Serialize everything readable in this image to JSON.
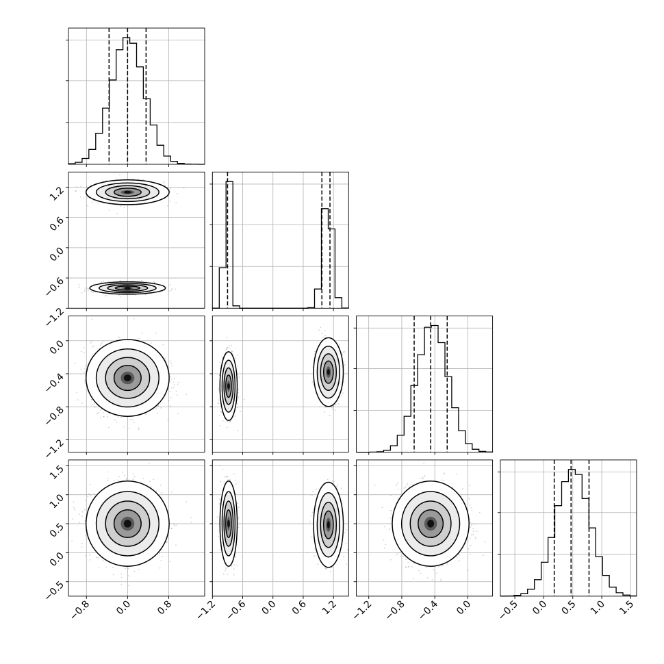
{
  "chart_data": {
    "type": "corner",
    "grid": true,
    "params": [
      {
        "range": [
          -1.15,
          1.5
        ],
        "ticks": [
          -0.8,
          0.0,
          0.8
        ],
        "tick_labels": [
          "−0.8",
          "0.0",
          "0.8"
        ],
        "quantiles": [
          -0.36,
          0.0,
          0.36
        ],
        "hist_center": 0.0,
        "hist_sigma": 0.33
      },
      {
        "range": [
          -1.2,
          1.5
        ],
        "ticks": [
          -1.2,
          -0.6,
          0.0,
          0.6,
          1.2
        ],
        "tick_labels": [
          "−1.2",
          "−0.6",
          "0.0",
          "0.6",
          "1.2"
        ],
        "quantiles": [
          -0.9,
          0.97,
          1.13
        ]
      },
      {
        "range": [
          -1.35,
          0.3
        ],
        "ticks": [
          -1.2,
          -0.8,
          -0.4,
          0.0
        ],
        "tick_labels": [
          "−1.2",
          "−0.8",
          "−0.4",
          "0.0"
        ],
        "quantiles": [
          -0.65,
          -0.45,
          -0.25
        ],
        "hist_center": -0.43,
        "hist_sigma": 0.19
      },
      {
        "range": [
          -0.75,
          1.6
        ],
        "ticks": [
          -0.5,
          0.0,
          0.5,
          1.0,
          1.5
        ],
        "tick_labels": [
          "−0.5",
          "0.0",
          "0.5",
          "1.0",
          "1.5"
        ],
        "quantiles": [
          0.18,
          0.47,
          0.78
        ],
        "hist_center": 0.5,
        "hist_sigma": 0.3
      }
    ],
    "clusters": [
      {
        "row": 1,
        "col": 0,
        "cx": 0.0,
        "cy": 1.1,
        "sx": 0.33,
        "sy": 0.1
      },
      {
        "row": 1,
        "col": 0,
        "cx": 0.0,
        "cy": -0.8,
        "sx": 0.3,
        "sy": 0.05
      },
      {
        "row": 2,
        "col": 0,
        "cx": 0.0,
        "cy": -0.45,
        "sx": 0.33,
        "sy": 0.19
      },
      {
        "row": 2,
        "col": 1,
        "cx": -0.88,
        "cy": -0.55,
        "sx": 0.07,
        "sy": 0.17
      },
      {
        "row": 2,
        "col": 1,
        "cx": 1.1,
        "cy": -0.38,
        "sx": 0.12,
        "sy": 0.17
      },
      {
        "row": 3,
        "col": 0,
        "cx": 0.0,
        "cy": 0.5,
        "sx": 0.33,
        "sy": 0.3
      },
      {
        "row": 3,
        "col": 0,
        "cx": 0.0,
        "cy": 0.5,
        "sx": 0.33,
        "sy": 0.3
      },
      {
        "row": 3,
        "col": 1,
        "cx": -0.88,
        "cy": 0.5,
        "sx": 0.07,
        "sy": 0.3
      },
      {
        "row": 3,
        "col": 1,
        "cx": 1.1,
        "cy": 0.48,
        "sx": 0.12,
        "sy": 0.3
      },
      {
        "row": 3,
        "col": 2,
        "cx": -0.45,
        "cy": 0.5,
        "sx": 0.19,
        "sy": 0.3
      }
    ],
    "hist_bimodal": {
      "param": 1,
      "modes": [
        {
          "center": -0.9,
          "sigma": 0.06,
          "weight": 0.45
        },
        {
          "center": 1.08,
          "sigma": 0.1,
          "weight": 0.55
        }
      ]
    }
  }
}
